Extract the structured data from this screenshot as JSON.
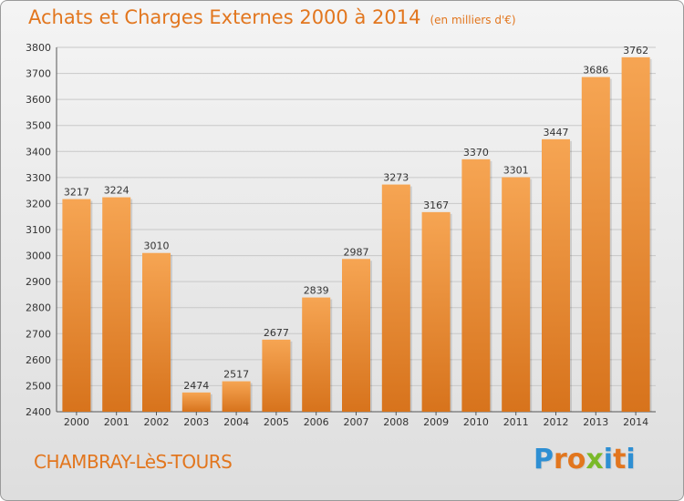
{
  "title": "Achats et Charges Externes 2000 à 2014",
  "subtitle": "(en milliers d'€)",
  "town": "CHAMBRAY-LèS-TOURS",
  "logo": {
    "text": "Proxiti",
    "letter_colors": [
      "#2e8fd3",
      "#e2761e",
      "#e2761e",
      "#7ab929",
      "#2e8fd3",
      "#e2761e",
      "#2e8fd3"
    ]
  },
  "colors": {
    "bar_light": "#f6a553",
    "bar_dark": "#d7731c",
    "grid": "#c8c8c8",
    "axis": "#555555"
  },
  "chart_data": {
    "type": "bar",
    "title": "Achats et Charges Externes 2000 à 2014",
    "subtitle": "(en milliers d'€)",
    "xlabel": "",
    "ylabel": "",
    "categories": [
      "2000",
      "2001",
      "2002",
      "2003",
      "2004",
      "2005",
      "2006",
      "2007",
      "2008",
      "2009",
      "2010",
      "2011",
      "2012",
      "2013",
      "2014"
    ],
    "values": [
      3217,
      3224,
      3010,
      2474,
      2517,
      2677,
      2839,
      2987,
      3273,
      3167,
      3370,
      3301,
      3447,
      3686,
      3762
    ],
    "ylim": [
      2400,
      3800
    ],
    "yticks": [
      2400,
      2500,
      2600,
      2700,
      2800,
      2900,
      3000,
      3100,
      3200,
      3300,
      3400,
      3500,
      3600,
      3700,
      3800
    ],
    "grid": true
  }
}
